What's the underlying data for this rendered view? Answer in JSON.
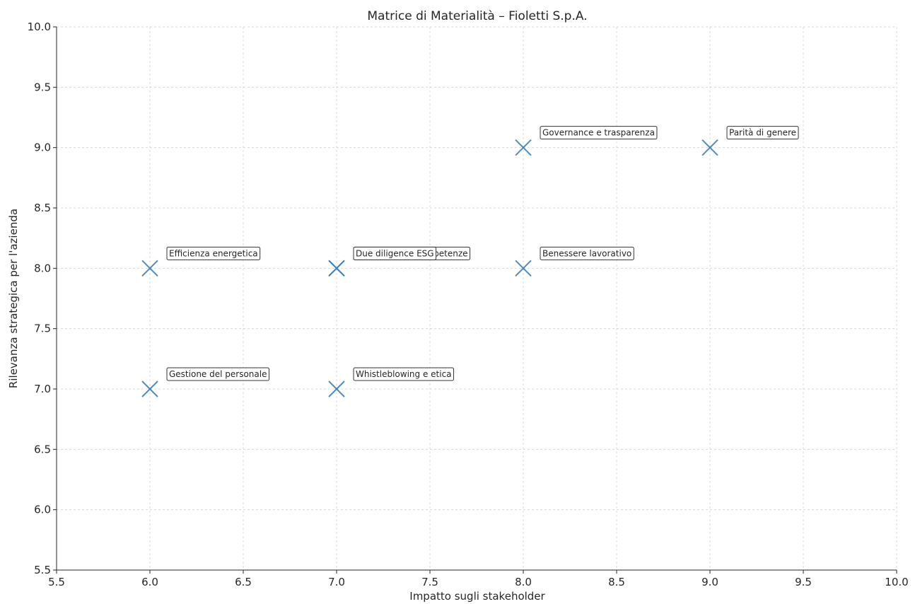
{
  "chart_data": {
    "type": "scatter",
    "title": "Matrice di Materialità – Fioletti S.p.A.",
    "xlabel": "Impatto sugli stakeholder",
    "ylabel": "Rilevanza strategica per l'azienda",
    "xlim": [
      5.5,
      10.0
    ],
    "ylim": [
      5.5,
      10.0
    ],
    "xticks": [
      "5.5",
      "6.0",
      "6.5",
      "7.0",
      "7.5",
      "8.0",
      "8.5",
      "9.0",
      "9.5",
      "10.0"
    ],
    "yticks": [
      "5.5",
      "6.0",
      "6.5",
      "7.0",
      "7.5",
      "8.0",
      "8.5",
      "9.0",
      "9.5",
      "10.0"
    ],
    "grid": true,
    "marker": "x",
    "marker_color": "#3b82b9",
    "points": [
      {
        "label": "Governance e trasparenza",
        "x": 8,
        "y": 9
      },
      {
        "label": "Parità di genere",
        "x": 9,
        "y": 9
      },
      {
        "label": "Efficienza energetica",
        "x": 6,
        "y": 8
      },
      {
        "label": "Formazione e competenze",
        "x": 7,
        "y": 8
      },
      {
        "label": "Due diligence ESG",
        "x": 7,
        "y": 8
      },
      {
        "label": "Benessere lavorativo",
        "x": 8,
        "y": 8
      },
      {
        "label": "Gestione del personale",
        "x": 6,
        "y": 7
      },
      {
        "label": "Whistleblowing e etica",
        "x": 7,
        "y": 7
      }
    ]
  }
}
